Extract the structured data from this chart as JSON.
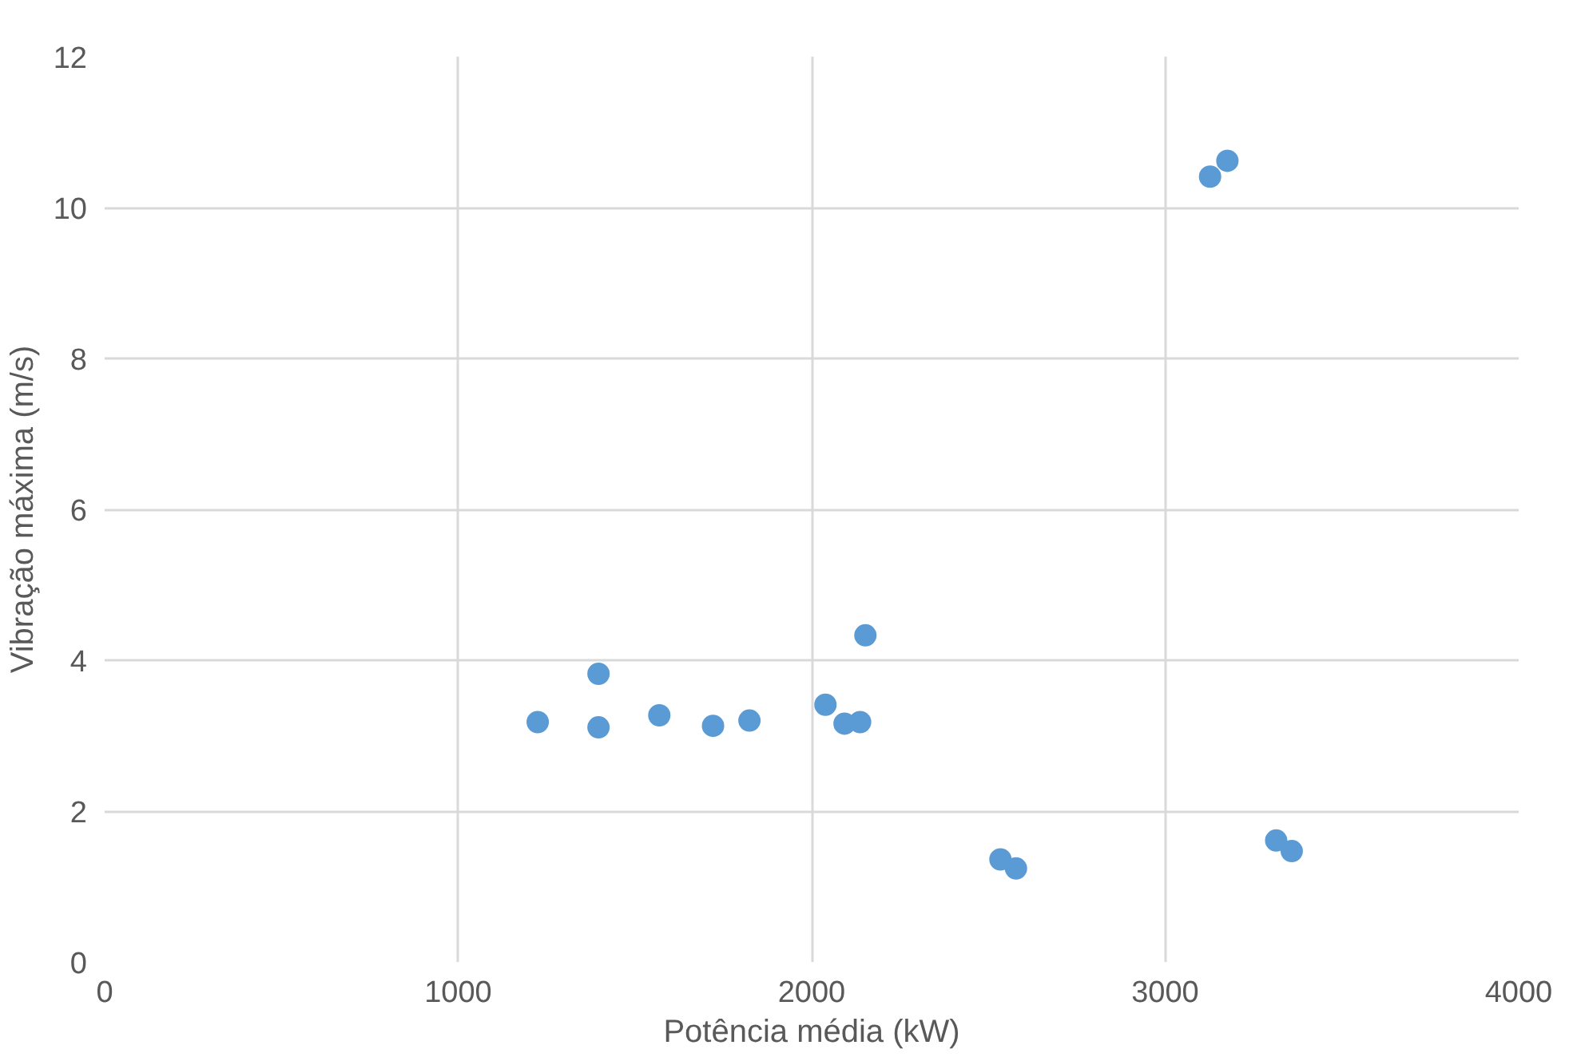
{
  "chart_data": {
    "type": "scatter",
    "xlabel": "Potência média (kW)",
    "ylabel": "Vibração máxima (m/s)",
    "x": [
      1225,
      1397,
      1397,
      1569,
      1721,
      1824,
      2039,
      2093,
      2137,
      2152,
      2534,
      2578,
      3127,
      3176,
      3314,
      3358
    ],
    "values": [
      3.18,
      3.82,
      3.11,
      3.27,
      3.13,
      3.2,
      3.41,
      3.16,
      3.18,
      4.33,
      1.36,
      1.24,
      10.41,
      10.62,
      1.61,
      1.47
    ],
    "color": "#5b9bd5",
    "marker": "circle",
    "xlim": [
      0,
      4000
    ],
    "xticks": [
      0,
      1000,
      2000,
      3000,
      4000
    ],
    "ylim": [
      0,
      12
    ],
    "yticks": [
      0,
      2,
      4,
      6,
      8,
      10,
      12
    ],
    "grid": true
  }
}
